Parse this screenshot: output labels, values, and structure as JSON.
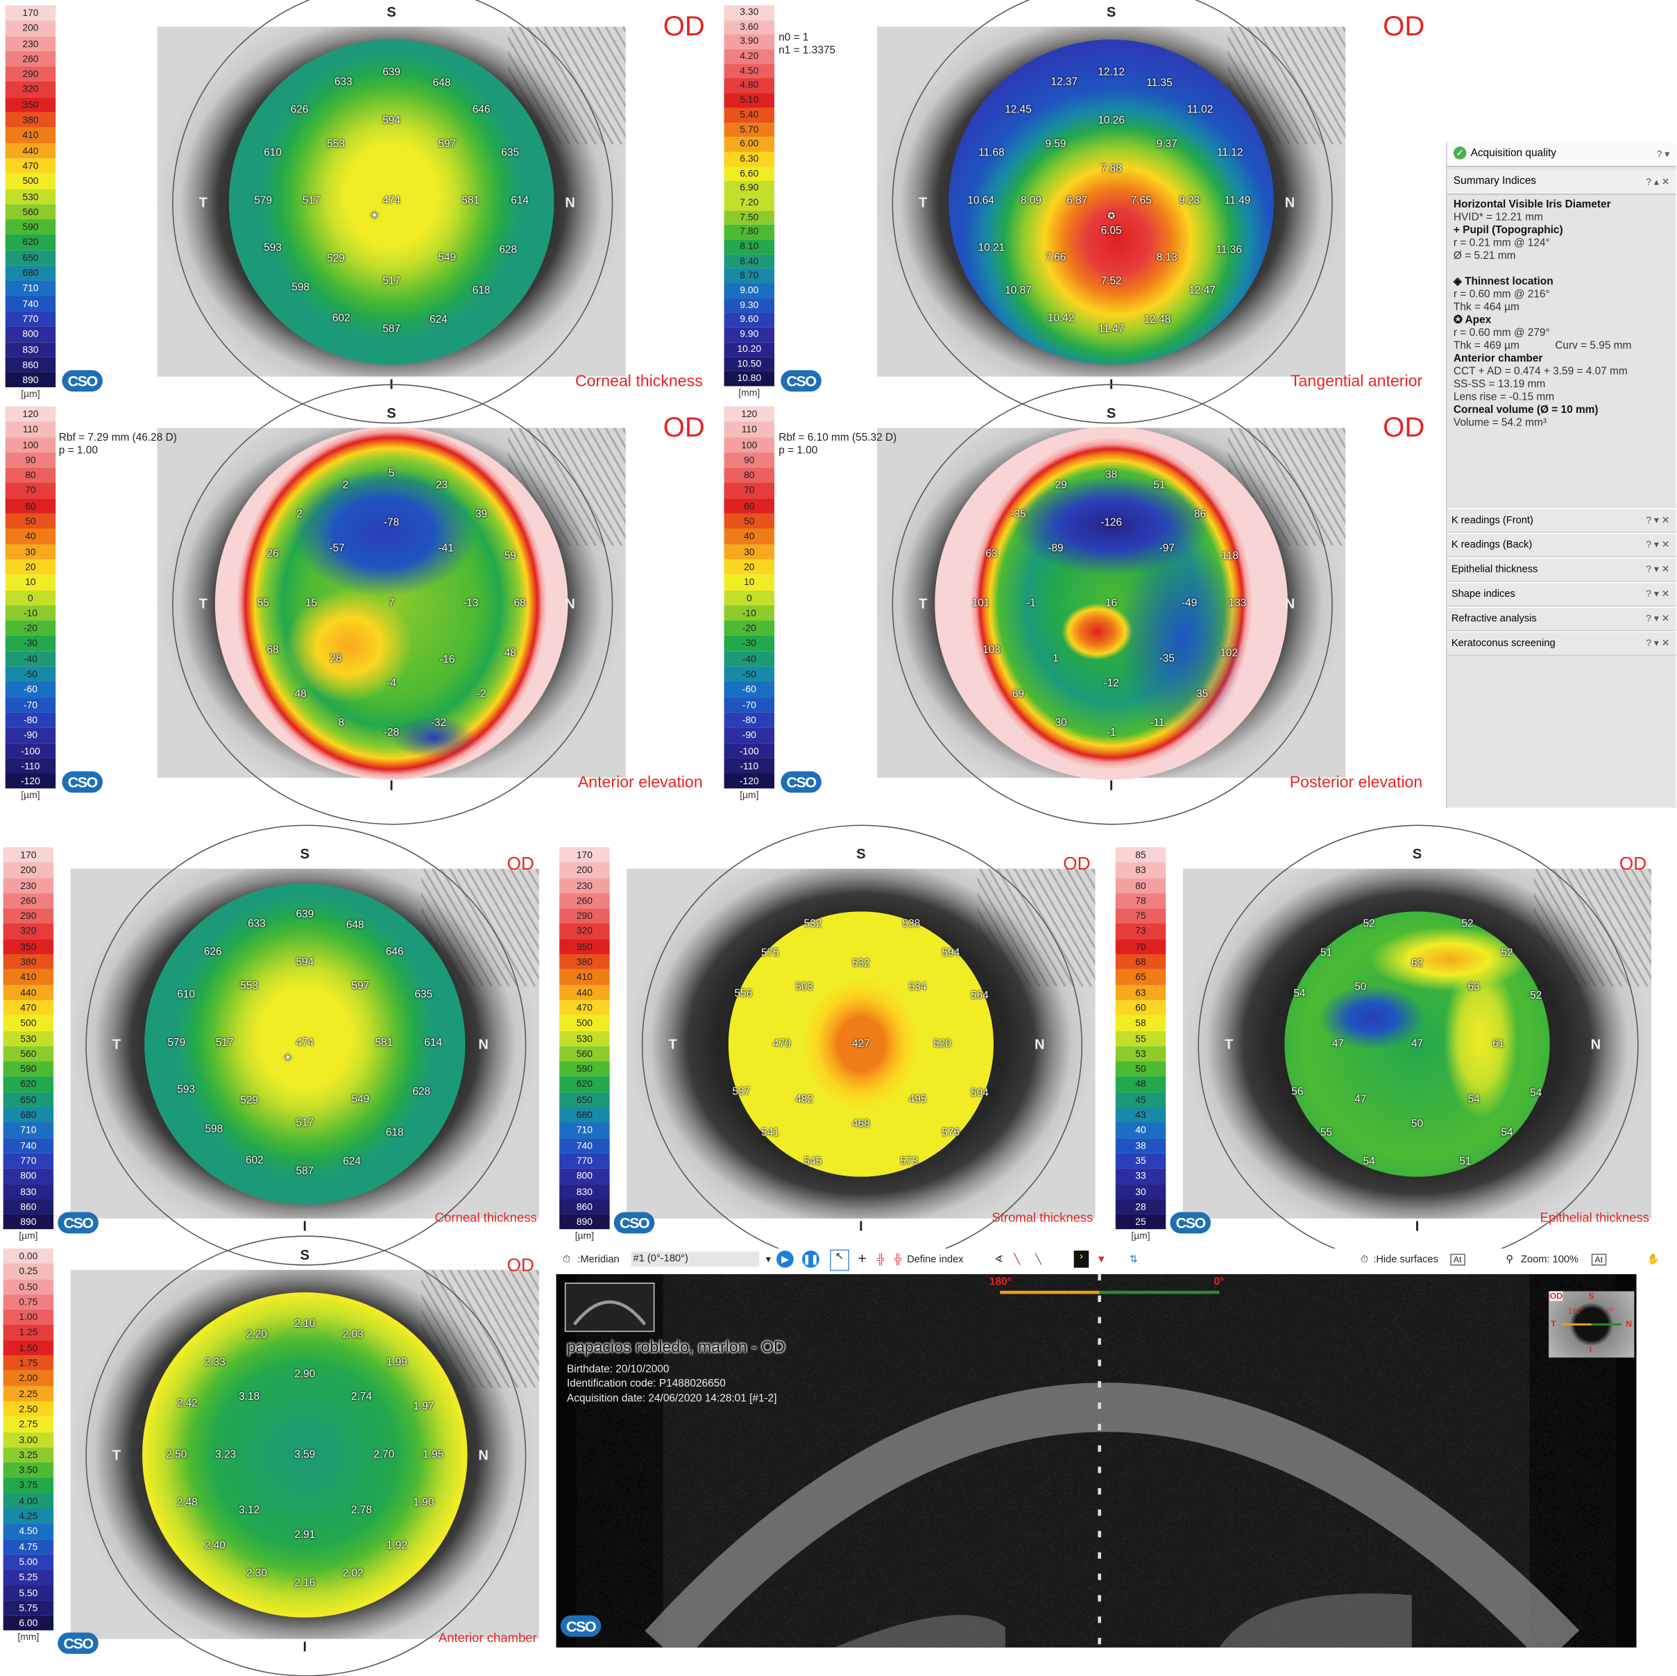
{
  "eye_label": "OD",
  "compass": {
    "s": "S",
    "t": "T",
    "n": "N",
    "i": "I"
  },
  "logo": "CSO",
  "palette": [
    "#f9d4d4",
    "#f6bcbc",
    "#f4a0a0",
    "#f08080",
    "#ec6060",
    "#e63c3c",
    "#df2020",
    "#e8531c",
    "#f07c18",
    "#f8a81c",
    "#fbd51f",
    "#f1ed25",
    "#c4df2a",
    "#8ccb2c",
    "#4cba33",
    "#24a84c",
    "#1c9a78",
    "#1889a6",
    "#1a6fc2",
    "#1f55c0",
    "#2a3eb8",
    "#2c2ea0",
    "#262488",
    "#1e1c6e",
    "#141350"
  ],
  "maps": [
    {
      "title": "Corneal thickness",
      "unit": "[µm]",
      "annotation": [],
      "scale": [
        "170",
        "200",
        "230",
        "260",
        "290",
        "320",
        "350",
        "380",
        "410",
        "440",
        "470",
        "500",
        "530",
        "560",
        "590",
        "620",
        "650",
        "680",
        "710",
        "740",
        "770",
        "800",
        "830",
        "860",
        "890"
      ],
      "values": [
        "633",
        "639",
        "648",
        "626",
        "594",
        "646",
        "610",
        "553",
        "597",
        "635",
        "579",
        "517",
        "474",
        "581",
        "614",
        "593",
        "529",
        "549",
        "628",
        "598",
        "517",
        "618",
        "602",
        "587",
        "624"
      ]
    },
    {
      "title": "Tangential anterior",
      "unit": "[mm]",
      "annotation": [
        "n0 = 1",
        "n1 = 1.3375"
      ],
      "scale": [
        "3.30",
        "3.60",
        "3.90",
        "4.20",
        "4.50",
        "4.80",
        "5.10",
        "5.40",
        "5.70",
        "6.00",
        "6.30",
        "6.60",
        "6.90",
        "7.20",
        "7.50",
        "7.80",
        "8.10",
        "8.40",
        "8.70",
        "9.00",
        "9.30",
        "9.60",
        "9.90",
        "10.20",
        "10.50",
        "10.80"
      ],
      "values": [
        "12.37",
        "12.12",
        "11.35",
        "12.45",
        "10.26",
        "11.02",
        "11.68",
        "9.59",
        "9.37",
        "11.12",
        "7.88",
        "10.64",
        "8.09",
        "6.87",
        "7.65",
        "9.23",
        "11.49",
        "6.05",
        "10.21",
        "7.66",
        "8.13",
        "11.36",
        "10.87",
        "7.52",
        "12.47",
        "10.42",
        "11.47",
        "12.48"
      ]
    },
    {
      "title": "Anterior elevation",
      "unit": "[µm]",
      "annotation": [
        "Rbf = 7.29 mm (46.28 D)",
        "p = 1.00"
      ],
      "scale": [
        "120",
        "110",
        "100",
        "90",
        "80",
        "70",
        "60",
        "50",
        "40",
        "30",
        "20",
        "10",
        "0",
        "-10",
        "-20",
        "-30",
        "-40",
        "-50",
        "-60",
        "-70",
        "-80",
        "-90",
        "-100",
        "-110",
        "-120"
      ],
      "values": [
        "5",
        "2",
        "23",
        "-78",
        "39",
        "2",
        "-57",
        "-41",
        "26",
        "59",
        "55",
        "15",
        "7",
        "-13",
        "68",
        "28",
        "-16",
        "68",
        "-4",
        "48",
        "-2",
        "48",
        "8",
        "-28",
        "-32"
      ]
    },
    {
      "title": "Posterior elevation",
      "unit": "[µm]",
      "annotation": [
        "Rbf = 6.10 mm (55.32 D)",
        "p = 1.00"
      ],
      "scale": [
        "120",
        "110",
        "100",
        "90",
        "80",
        "70",
        "60",
        "50",
        "40",
        "30",
        "20",
        "10",
        "0",
        "-10",
        "-20",
        "-30",
        "-40",
        "-50",
        "-60",
        "-70",
        "-80",
        "-90",
        "-100",
        "-110",
        "-120"
      ],
      "values": [
        "38",
        "29",
        "51",
        "-35",
        "-126",
        "86",
        "63",
        "-89",
        "-97",
        "118",
        "101",
        "-1",
        "16",
        "-49",
        "133",
        "103",
        "1",
        "-35",
        "102",
        "-12",
        "69",
        "35",
        "30",
        "-1",
        "-11"
      ]
    },
    {
      "title": "Corneal thickness",
      "unit": "[µm]",
      "annotation": [],
      "scale": [
        "170",
        "200",
        "230",
        "260",
        "290",
        "320",
        "350",
        "380",
        "410",
        "440",
        "470",
        "500",
        "530",
        "560",
        "590",
        "620",
        "650",
        "680",
        "710",
        "740",
        "770",
        "800",
        "830",
        "860",
        "890"
      ],
      "values": [
        "633",
        "639",
        "648",
        "626",
        "594",
        "646",
        "610",
        "553",
        "597",
        "635",
        "579",
        "517",
        "474",
        "581",
        "614",
        "593",
        "529",
        "549",
        "628",
        "598",
        "517",
        "618",
        "602",
        "587",
        "624"
      ]
    },
    {
      "title": "Stromal thickness",
      "unit": "[µm]",
      "annotation": [],
      "scale": [
        "170",
        "200",
        "230",
        "260",
        "290",
        "320",
        "350",
        "380",
        "410",
        "440",
        "470",
        "500",
        "530",
        "560",
        "590",
        "620",
        "650",
        "680",
        "710",
        "740",
        "770",
        "800",
        "830",
        "860",
        "890"
      ],
      "values": [
        "532",
        "538",
        "575",
        "532",
        "594",
        "556",
        "503",
        "534",
        "564",
        "470",
        "427",
        "520",
        "537",
        "482",
        "495",
        "504",
        "541",
        "468",
        "576",
        "545",
        "573"
      ]
    },
    {
      "title": "Epithelial thickness",
      "unit": "[µm]",
      "annotation": [],
      "scale": [
        "85",
        "83",
        "80",
        "78",
        "75",
        "73",
        "70",
        "68",
        "65",
        "63",
        "60",
        "58",
        "55",
        "53",
        "50",
        "48",
        "45",
        "43",
        "40",
        "38",
        "35",
        "33",
        "30",
        "28",
        "25"
      ],
      "values": [
        "52",
        "52",
        "51",
        "62",
        "52",
        "54",
        "50",
        "63",
        "52",
        "47",
        "47",
        "61",
        "56",
        "47",
        "54",
        "54",
        "55",
        "50",
        "54",
        "54",
        "51"
      ]
    },
    {
      "title": "Anterior chamber",
      "unit": "[mm]",
      "annotation": [],
      "scale": [
        "0.00",
        "0.25",
        "0.50",
        "0.75",
        "1.00",
        "1.25",
        "1.50",
        "1.75",
        "2.00",
        "2.25",
        "2.50",
        "2.75",
        "3.00",
        "3.25",
        "3.50",
        "3.75",
        "4.00",
        "4.25",
        "4.50",
        "4.75",
        "5.00",
        "5.25",
        "5.50",
        "5.75",
        "6.00"
      ],
      "values": [
        "2.10",
        "2.20",
        "2.03",
        "2.33",
        "2.90",
        "1.99",
        "2.42",
        "3.18",
        "2.74",
        "1.97",
        "2.50",
        "3.23",
        "3.59",
        "2.70",
        "1.95",
        "2.48",
        "3.12",
        "2.78",
        "1.90",
        "2.91",
        "2.40",
        "1.92",
        "2.30",
        "2.16",
        "2.02"
      ]
    }
  ],
  "panel": {
    "acquisition_quality": "Acquisition quality",
    "summary_title": "Summary Indices",
    "help": "?",
    "lines": [
      {
        "text": "Horizontal Visible Iris Diameter",
        "bold": true
      },
      {
        "text": "HVID* = 12.21 mm"
      },
      {
        "text": "+ Pupil (Topographic)",
        "bold": true
      },
      {
        "text": "r = 0.21 mm @ 124°"
      },
      {
        "text": "Ø = 5.21 mm"
      },
      {
        "text": " "
      },
      {
        "text": "◈ Thinnest location",
        "bold": true
      },
      {
        "text": "r = 0.60 mm @ 216°"
      },
      {
        "text": "Thk = 464 µm"
      },
      {
        "text": "✪ Apex",
        "bold": true
      },
      {
        "text": "r = 0.60 mm @ 279°"
      },
      {
        "text": "Thk = 469 µm            Curv = 5.95 mm"
      },
      {
        "text": "Anterior chamber",
        "bold": true
      },
      {
        "text": "CCT + AD = 0.474 + 3.59 = 4.07 mm"
      },
      {
        "text": "SS-SS = 13.19 mm"
      },
      {
        "text": "Lens rise = -0.15 mm"
      },
      {
        "text": "Corneal volume (Ø = 10 mm)",
        "bold": true
      },
      {
        "text": "Volume = 54.2 mm³"
      }
    ],
    "sections": [
      "K readings (Front)",
      "K readings (Back)",
      "Epithelial thickness",
      "Shape indices",
      "Refractive analysis",
      "Keratoconus screening"
    ]
  },
  "oct": {
    "toolbar": {
      "meridian_label": ":Meridian",
      "meridian_value": "#1 (0°-180°)",
      "define_index": "Define index",
      "hide_surfaces": ":Hide surfaces",
      "zoom": "Zoom: 100%",
      "auto1": "At",
      "auto2": "At"
    },
    "angle_left": "180°",
    "angle_right": "0°",
    "patient_name": "papacios robledo, marlon - OD",
    "birthdate": "Birthdate: 20/10/2000",
    "id_code": "Identification code: P1488026650",
    "acq_date": "Acquisition date: 24/06/2020 14:28:01 [#1-2]",
    "mini_od": "OD",
    "mini_180": "180°",
    "mini_0": "0°"
  }
}
